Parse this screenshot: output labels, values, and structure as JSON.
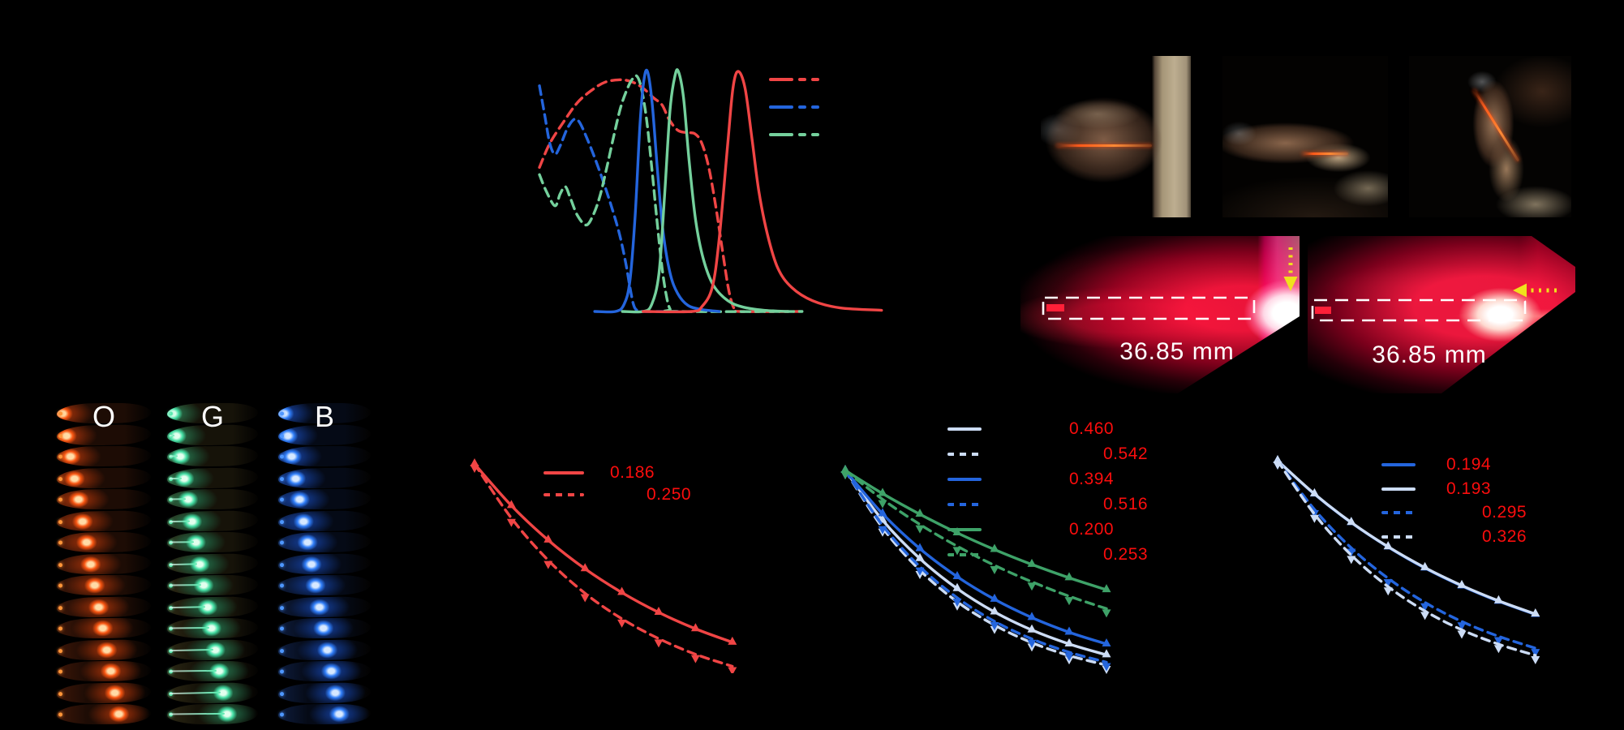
{
  "figure": {
    "background": "#000000"
  },
  "colors": {
    "red": "#f04545",
    "blue": "#2465dd",
    "green": "#74d09c",
    "mid_green": "#3ea268",
    "pale_blue": "#ccdcf5",
    "legend_value": "#fb0d0d",
    "white": "#ffffff",
    "yellow": "#f0e11c"
  },
  "laser_panels": [
    {
      "label": "36.85 mm",
      "arrow_direction": "down"
    },
    {
      "label": "36.85 mm",
      "arrow_direction": "left"
    }
  ],
  "sample_columns": [
    {
      "label": "O",
      "rows": 15,
      "palette": {
        "edge": "#3d1608",
        "base": "#1d0c05",
        "glow": "rgba(255,88,18,0.95)",
        "halo": "rgba(200,60,10,0.5)",
        "core": "#ffdba6",
        "dot": "#ff9538"
      },
      "fiber_line": false
    },
    {
      "label": "G",
      "rows": 15,
      "palette": {
        "edge": "#2c2814",
        "base": "#161309",
        "glow": "rgba(70,230,170,0.95)",
        "halo": "rgba(40,160,110,0.45)",
        "core": "#e2ffee",
        "dot": "#5ceab0"
      },
      "fiber_line": true
    },
    {
      "label": "B",
      "rows": 15,
      "palette": {
        "edge": "#0e1d3e",
        "base": "#050a16",
        "glow": "rgba(50,130,255,0.95)",
        "halo": "rgba(25,80,200,0.5)",
        "core": "#d6e8ff",
        "dot": "#4e97ff"
      },
      "fiber_line": false
    }
  ],
  "chart_data": [
    {
      "id": "excitation-emission-spectra",
      "type": "line",
      "title": "",
      "xlabel": "",
      "ylabel": "",
      "axes_visible": false,
      "legend_position": "upper right",
      "legend": [
        {
          "color": "red"
        },
        {
          "color": "blue"
        },
        {
          "color": "green"
        }
      ],
      "series": [
        {
          "name": "red-excitation",
          "color": "red",
          "dash": true,
          "points": [
            [
              0,
              0.6
            ],
            [
              0.03,
              0.7
            ],
            [
              0.07,
              0.79
            ],
            [
              0.11,
              0.87
            ],
            [
              0.15,
              0.92
            ],
            [
              0.19,
              0.955
            ],
            [
              0.235,
              0.965
            ],
            [
              0.27,
              0.955
            ],
            [
              0.3,
              0.93
            ],
            [
              0.33,
              0.89
            ],
            [
              0.355,
              0.86
            ],
            [
              0.375,
              0.8
            ],
            [
              0.4,
              0.755
            ],
            [
              0.425,
              0.745
            ],
            [
              0.45,
              0.74
            ],
            [
              0.47,
              0.7
            ],
            [
              0.49,
              0.6
            ],
            [
              0.51,
              0.44
            ],
            [
              0.53,
              0.25
            ],
            [
              0.545,
              0.11
            ],
            [
              0.556,
              0.04
            ],
            [
              0.565,
              0.01
            ],
            [
              0.58,
              0
            ],
            [
              0.75,
              0
            ]
          ]
        },
        {
          "name": "blue-excitation",
          "color": "blue",
          "dash": true,
          "points": [
            [
              0,
              0.94
            ],
            [
              0.015,
              0.82
            ],
            [
              0.03,
              0.7
            ],
            [
              0.045,
              0.655
            ],
            [
              0.06,
              0.69
            ],
            [
              0.08,
              0.76
            ],
            [
              0.1,
              0.8
            ],
            [
              0.115,
              0.79
            ],
            [
              0.135,
              0.73
            ],
            [
              0.16,
              0.64
            ],
            [
              0.185,
              0.54
            ],
            [
              0.21,
              0.43
            ],
            [
              0.232,
              0.32
            ],
            [
              0.25,
              0.2
            ],
            [
              0.262,
              0.1
            ],
            [
              0.272,
              0.03
            ],
            [
              0.282,
              0.005
            ],
            [
              0.3,
              0
            ],
            [
              0.4,
              0
            ]
          ]
        },
        {
          "name": "green-excitation",
          "color": "green",
          "dash": true,
          "points": [
            [
              0,
              0.57
            ],
            [
              0.02,
              0.5
            ],
            [
              0.045,
              0.44
            ],
            [
              0.06,
              0.49
            ],
            [
              0.075,
              0.52
            ],
            [
              0.09,
              0.47
            ],
            [
              0.11,
              0.4
            ],
            [
              0.135,
              0.36
            ],
            [
              0.155,
              0.4
            ],
            [
              0.175,
              0.48
            ],
            [
              0.195,
              0.6
            ],
            [
              0.215,
              0.73
            ],
            [
              0.235,
              0.85
            ],
            [
              0.255,
              0.93
            ],
            [
              0.27,
              0.97
            ],
            [
              0.282,
              0.98
            ],
            [
              0.295,
              0.93
            ],
            [
              0.31,
              0.8
            ],
            [
              0.325,
              0.6
            ],
            [
              0.34,
              0.38
            ],
            [
              0.355,
              0.18
            ],
            [
              0.368,
              0.06
            ],
            [
              0.378,
              0.01
            ],
            [
              0.39,
              0
            ],
            [
              0.76,
              0
            ]
          ]
        },
        {
          "name": "blue-emission",
          "color": "blue",
          "dash": false,
          "points": [
            [
              0.16,
              0
            ],
            [
              0.22,
              0
            ],
            [
              0.245,
              0.03
            ],
            [
              0.262,
              0.13
            ],
            [
              0.277,
              0.4
            ],
            [
              0.291,
              0.78
            ],
            [
              0.302,
              0.96
            ],
            [
              0.3125,
              1.0
            ],
            [
              0.326,
              0.87
            ],
            [
              0.342,
              0.58
            ],
            [
              0.358,
              0.33
            ],
            [
              0.378,
              0.16
            ],
            [
              0.4,
              0.075
            ],
            [
              0.43,
              0.025
            ],
            [
              0.47,
              0.008
            ],
            [
              0.52,
              0
            ]
          ]
        },
        {
          "name": "green-emission",
          "color": "green",
          "dash": false,
          "points": [
            [
              0.24,
              0
            ],
            [
              0.3,
              0
            ],
            [
              0.325,
              0.03
            ],
            [
              0.346,
              0.16
            ],
            [
              0.362,
              0.48
            ],
            [
              0.378,
              0.84
            ],
            [
              0.392,
              0.98
            ],
            [
              0.402,
              1.0
            ],
            [
              0.417,
              0.89
            ],
            [
              0.433,
              0.63
            ],
            [
              0.452,
              0.38
            ],
            [
              0.474,
              0.22
            ],
            [
              0.503,
              0.11
            ],
            [
              0.545,
              0.045
            ],
            [
              0.59,
              0.018
            ],
            [
              0.65,
              0.005
            ],
            [
              0.72,
              0
            ]
          ]
        },
        {
          "name": "red-emission",
          "color": "red",
          "dash": false,
          "points": [
            [
              0.3,
              0
            ],
            [
              0.44,
              0
            ],
            [
              0.47,
              0.02
            ],
            [
              0.5,
              0.1
            ],
            [
              0.52,
              0.3
            ],
            [
              0.545,
              0.7
            ],
            [
              0.56,
              0.93
            ],
            [
              0.575,
              1.0
            ],
            [
              0.595,
              0.93
            ],
            [
              0.615,
              0.72
            ],
            [
              0.635,
              0.5
            ],
            [
              0.66,
              0.32
            ],
            [
              0.69,
              0.18
            ],
            [
              0.73,
              0.1
            ],
            [
              0.79,
              0.045
            ],
            [
              0.87,
              0.015
            ],
            [
              0.99,
              0.005
            ]
          ]
        }
      ]
    },
    {
      "id": "attenuation-orange",
      "type": "line",
      "title": "",
      "xlabel": "",
      "ylabel": "",
      "axes_visible": false,
      "series": [
        {
          "name": "orange-solid",
          "color": "red",
          "dash": false,
          "marker": "up",
          "coefficient": "0.186",
          "values": [
            1,
            0.83,
            0.689,
            0.572,
            0.475,
            0.394,
            0.327,
            0.272
          ]
        },
        {
          "name": "orange-dashed",
          "color": "red",
          "dash": true,
          "marker": "down",
          "coefficient": "0.250",
          "values": [
            1,
            0.779,
            0.607,
            0.472,
            0.368,
            0.287,
            0.223,
            0.174
          ]
        }
      ]
    },
    {
      "id": "attenuation-three-colors",
      "type": "line",
      "title": "",
      "xlabel": "",
      "ylabel": "",
      "axes_visible": false,
      "series": [
        {
          "name": "pale-solid",
          "color": "pale_blue",
          "dash": false,
          "marker": "up",
          "coefficient": "0.460",
          "values": [
            1,
            0.776,
            0.603,
            0.468,
            0.363,
            0.282,
            0.219,
            0.17
          ]
        },
        {
          "name": "pale-dashed",
          "color": "pale_blue",
          "dash": true,
          "marker": "down",
          "coefficient": "0.542",
          "values": [
            1,
            0.742,
            0.551,
            0.409,
            0.304,
            0.225,
            0.167,
            0.124
          ]
        },
        {
          "name": "blue-solid",
          "color": "blue",
          "dash": false,
          "marker": "up",
          "coefficient": "0.394",
          "values": [
            1,
            0.805,
            0.648,
            0.522,
            0.42,
            0.338,
            0.272,
            0.219
          ]
        },
        {
          "name": "blue-dashed",
          "color": "blue",
          "dash": true,
          "marker": "down",
          "coefficient": "0.516",
          "values": [
            1,
            0.753,
            0.567,
            0.427,
            0.321,
            0.242,
            0.182,
            0.137
          ]
        },
        {
          "name": "green-solid",
          "color": "mid_green",
          "dash": false,
          "marker": "up",
          "coefficient": "0.200",
          "values": [
            1,
            0.896,
            0.803,
            0.719,
            0.644,
            0.577,
            0.517,
            0.463
          ]
        },
        {
          "name": "green-dashed",
          "color": "mid_green",
          "dash": true,
          "marker": "down",
          "coefficient": "0.253",
          "values": [
            1,
            0.87,
            0.757,
            0.659,
            0.573,
            0.499,
            0.434,
            0.378
          ]
        }
      ]
    },
    {
      "id": "attenuation-blue-pair",
      "type": "line",
      "title": "",
      "xlabel": "",
      "ylabel": "",
      "axes_visible": false,
      "series": [
        {
          "name": "blue-solid",
          "color": "blue",
          "dash": false,
          "marker": "up",
          "coefficient": "0.194",
          "values": [
            1,
            0.856,
            0.733,
            0.628,
            0.537,
            0.46,
            0.394,
            0.337
          ]
        },
        {
          "name": "pale-solid",
          "color": "pale_blue",
          "dash": false,
          "marker": "up",
          "coefficient": "0.193",
          "values": [
            1,
            0.857,
            0.734,
            0.629,
            0.539,
            0.462,
            0.396,
            0.339
          ]
        },
        {
          "name": "blue-dashed",
          "color": "blue",
          "dash": true,
          "marker": "down",
          "coefficient": "0.295",
          "values": [
            1,
            0.79,
            0.624,
            0.493,
            0.389,
            0.307,
            0.243,
            0.192
          ]
        },
        {
          "name": "pale-dashed",
          "color": "pale_blue",
          "dash": true,
          "marker": "down",
          "coefficient": "0.326",
          "values": [
            1,
            0.77,
            0.593,
            0.457,
            0.352,
            0.271,
            0.209,
            0.161
          ]
        }
      ]
    }
  ]
}
